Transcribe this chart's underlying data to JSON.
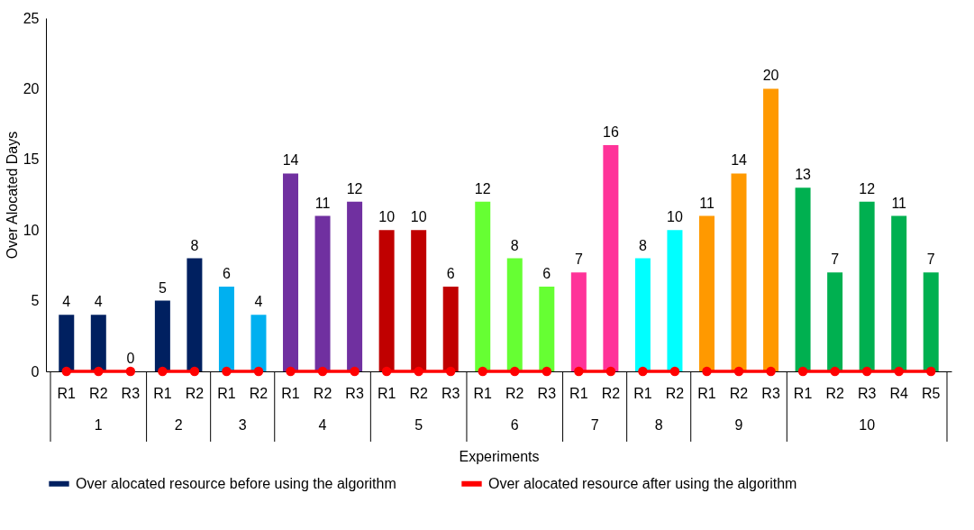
{
  "chart_data": {
    "type": "bar",
    "xlabel": "Experiments",
    "ylabel": "Over Alocated Days",
    "categories": [
      "R1",
      "R2",
      "R3",
      "R1",
      "R2",
      "R1",
      "R2",
      "R1",
      "R2",
      "R3",
      "R1",
      "R2",
      "R3",
      "R1",
      "R2",
      "R3",
      "R1",
      "R2",
      "R1",
      "R2",
      "R1",
      "R2",
      "R3",
      "R1",
      "R2",
      "R3",
      "R4",
      "R5"
    ],
    "annotations": [
      "1",
      "2",
      "3",
      "4",
      "5",
      "6",
      "7",
      "8",
      "9",
      "10"
    ],
    "series": [
      {
        "name": "Over alocated resource before using the algorithm",
        "color": "#002060",
        "colors": [
          "#002060",
          "#002060",
          "#002060",
          "#002060",
          "#002060",
          "#00b0f0",
          "#00b0f0",
          "#7030a0",
          "#7030a0",
          "#7030a0",
          "#c00000",
          "#c00000",
          "#c00000",
          "#66ff33",
          "#66ff33",
          "#66ff33",
          "#ff3399",
          "#ff3399",
          "#00ffff",
          "#00ffff",
          "#ff9900",
          "#ff9900",
          "#ff9900",
          "#00b050",
          "#00b050",
          "#00b050",
          "#00b050",
          "#00b050"
        ],
        "values": [
          4,
          4,
          0,
          5,
          8,
          6,
          4,
          14,
          11,
          12,
          10,
          10,
          6,
          12,
          8,
          6,
          7,
          16,
          8,
          10,
          11,
          14,
          20,
          13,
          7,
          12,
          11,
          7
        ],
        "value_labels": [
          "4",
          "4",
          "0",
          "5",
          "8",
          "6",
          "4",
          "14",
          "11",
          "12",
          "10",
          "10",
          "6",
          "12",
          "8",
          "6",
          "7",
          "16",
          "8",
          "10",
          "11",
          "14",
          "20",
          "13",
          "7",
          "12",
          "11",
          "7"
        ]
      },
      {
        "name": "Over alocated resource after using the algorithm",
        "type": "line",
        "color": "#ff0000",
        "marker": "circle",
        "values": [
          0,
          0,
          0,
          0,
          0,
          0,
          0,
          0,
          0,
          0,
          0,
          0,
          0,
          0,
          0,
          0,
          0,
          0,
          0,
          0,
          0,
          0,
          0,
          0,
          0,
          0,
          0,
          0
        ]
      }
    ],
    "ylim": [
      0,
      25
    ],
    "yticks": [
      0,
      5,
      10,
      15,
      20,
      25
    ],
    "legend": "bottom"
  }
}
